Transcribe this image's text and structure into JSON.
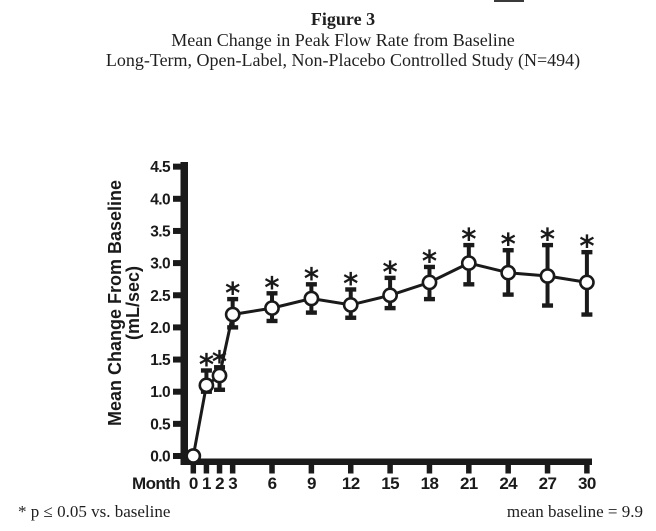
{
  "figure": {
    "label": "Figure 3",
    "title": "Mean Change in Peak Flow Rate from Baseline",
    "subtitle": "Long-Term, Open-Label, Non-Placebo Controlled Study (N=494)"
  },
  "chart_data": {
    "type": "line",
    "title": "Mean Change in Peak Flow Rate from Baseline",
    "xlabel": "Month",
    "ylabel": [
      "Mean Change From Baseline",
      "(mL/sec)"
    ],
    "x": [
      0,
      1,
      2,
      3,
      6,
      9,
      12,
      15,
      18,
      21,
      24,
      27,
      30
    ],
    "xticks": [
      0,
      1,
      2,
      3,
      6,
      9,
      12,
      15,
      18,
      21,
      24,
      27,
      30
    ],
    "ylim": [
      0,
      4.5
    ],
    "ytick_step": 0.5,
    "yticks": [
      0.0,
      0.5,
      1.0,
      1.5,
      2.0,
      2.5,
      3.0,
      3.5,
      4.0,
      4.5
    ],
    "xlim": [
      0,
      30
    ],
    "grid": false,
    "legend": "none",
    "marker": "open-circle",
    "significance_marker": "*",
    "series": [
      {
        "name": "Mean change in peak flow rate (mL/sec)",
        "values": [
          0.0,
          1.1,
          1.25,
          2.2,
          2.3,
          2.45,
          2.35,
          2.5,
          2.7,
          3.0,
          2.85,
          2.8,
          2.7
        ],
        "error_low": [
          null,
          1.0,
          1.03,
          2.0,
          2.1,
          2.23,
          2.15,
          2.3,
          2.44,
          2.67,
          2.51,
          2.34,
          2.2
        ],
        "error_high": [
          null,
          1.33,
          1.38,
          2.44,
          2.53,
          2.67,
          2.59,
          2.77,
          2.94,
          3.28,
          3.2,
          3.28,
          3.17
        ],
        "significant": [
          false,
          true,
          true,
          true,
          true,
          true,
          true,
          true,
          true,
          true,
          true,
          true,
          true
        ]
      }
    ]
  },
  "footnotes": {
    "left": "* p ≤ 0.05 vs. baseline",
    "right": "mean baseline = 9.9"
  },
  "colors": {
    "ink": "#1a1a1a",
    "background": "#ffffff"
  }
}
